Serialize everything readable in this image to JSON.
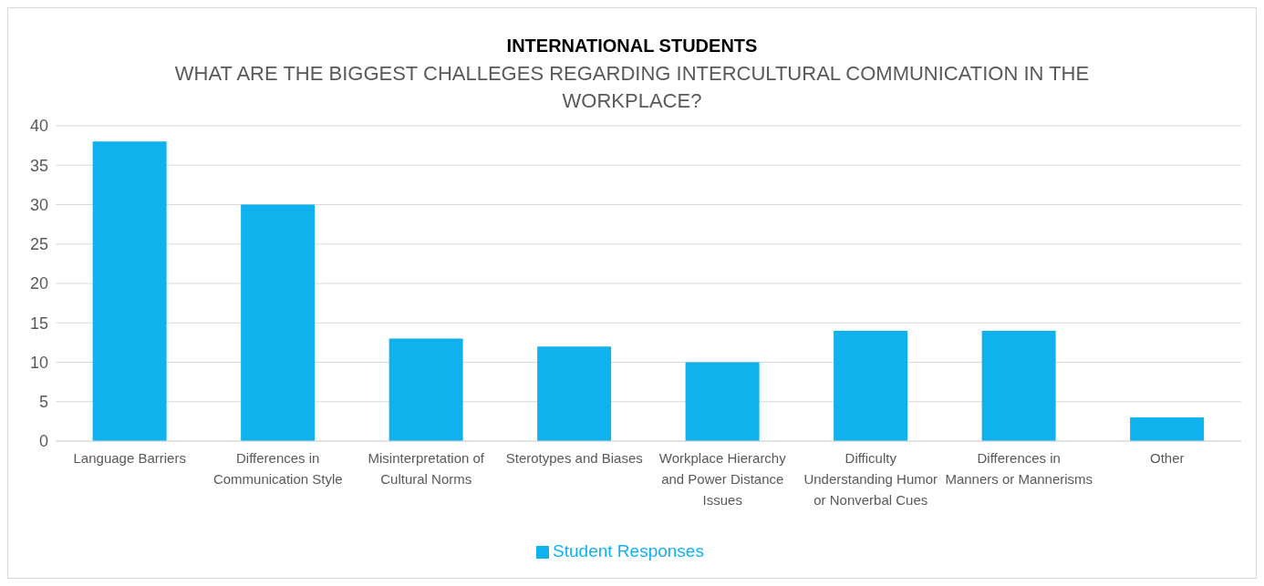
{
  "chart_data": {
    "type": "bar",
    "title": "INTERNATIONAL STUDENTS",
    "subtitle": "WHAT ARE THE BIGGEST CHALLEGES REGARDING INTERCULTURAL COMMUNICATION IN THE WORKPLACE?",
    "categories": [
      "Language Barriers",
      "Differences in Communication Style",
      "Misinterpretation of Cultural Norms",
      "Sterotypes and Biases",
      "Workplace Hierarchy and Power Distance Issues",
      "Difficulty Understanding Humor or Nonverbal Cues",
      "Differences in Manners or Mannerisms",
      "Other"
    ],
    "series": [
      {
        "name": "Student Responses",
        "color": "#10b2ee",
        "values": [
          38,
          30,
          13,
          12,
          10,
          14,
          14,
          3
        ]
      }
    ],
    "ylim": [
      0,
      40
    ],
    "yticks": [
      0,
      5,
      10,
      15,
      20,
      25,
      30,
      35,
      40
    ],
    "grid": "y",
    "legend": "bottom"
  }
}
